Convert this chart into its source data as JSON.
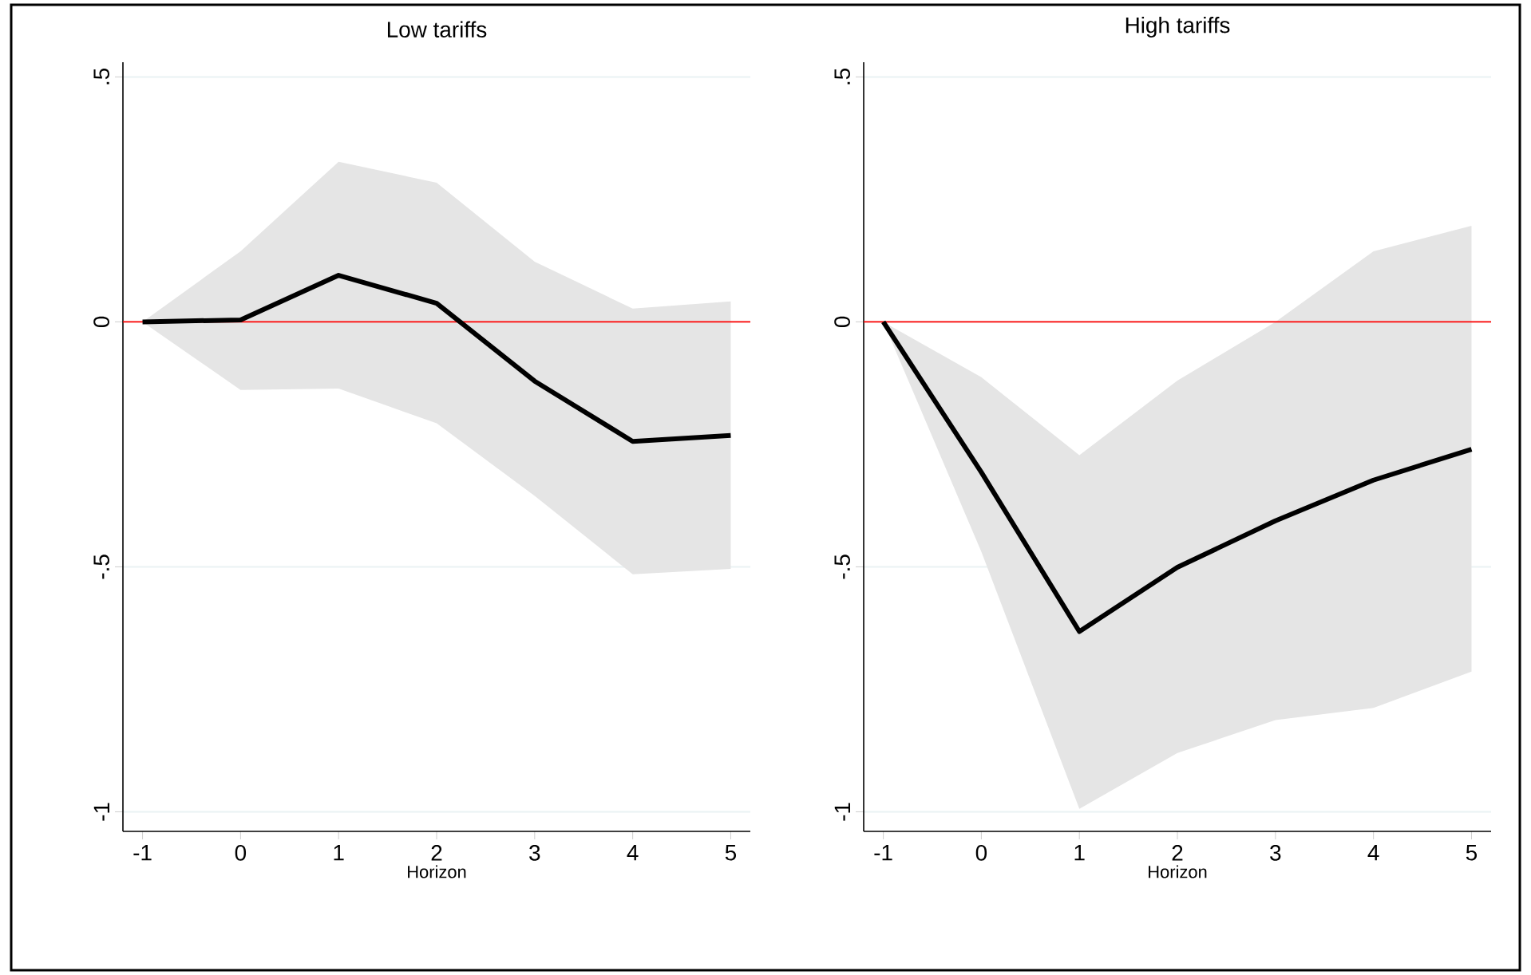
{
  "chart_data": [
    {
      "type": "line",
      "title": "Low tariffs",
      "xlabel": "Horizon",
      "x": [
        -1,
        0,
        1,
        2,
        3,
        4,
        5
      ],
      "series": [
        {
          "color": "#000000",
          "values": [
            0,
            0.004,
            0.095,
            0.038,
            -0.121,
            -0.244,
            -0.232
          ],
          "lower": [
            0,
            -0.139,
            -0.136,
            -0.207,
            -0.355,
            -0.515,
            -0.504
          ],
          "upper": [
            0,
            0.144,
            0.327,
            0.284,
            0.123,
            0.027,
            0.042
          ]
        }
      ],
      "xlim": [
        -1.2,
        5.2
      ],
      "ylim": [
        -1.04,
        0.53
      ],
      "xticks": [
        -1,
        0,
        1,
        2,
        3,
        4,
        5
      ],
      "yticks": [
        {
          "value": -1,
          "label": "-1"
        },
        {
          "value": -0.5,
          "label": "-.5"
        },
        0,
        {
          "value": 0.5,
          "label": ".5"
        }
      ],
      "grid": "y",
      "ref_lines": [
        {
          "axis": "y",
          "value": 0,
          "color": "#ff0000"
        }
      ]
    },
    {
      "type": "line",
      "title": "High tariffs",
      "xlabel": "Horizon",
      "x": [
        -1,
        0,
        1,
        2,
        3,
        4,
        5
      ],
      "series": [
        {
          "color": "#000000",
          "values": [
            0,
            -0.307,
            -0.632,
            -0.501,
            -0.406,
            -0.323,
            -0.26
          ],
          "lower": [
            0,
            -0.469,
            -0.994,
            -0.88,
            -0.813,
            -0.788,
            -0.714
          ],
          "upper": [
            0,
            -0.113,
            -0.272,
            -0.12,
            0,
            0.144,
            0.196
          ]
        }
      ],
      "xlim": [
        -1.2,
        5.2
      ],
      "ylim": [
        -1.04,
        0.53
      ],
      "xticks": [
        -1,
        0,
        1,
        2,
        3,
        4,
        5
      ],
      "yticks": [
        {
          "value": -1,
          "label": "-1"
        },
        {
          "value": -0.5,
          "label": "-.5"
        },
        0,
        {
          "value": 0.5,
          "label": ".5"
        }
      ],
      "grid": "y",
      "ref_lines": [
        {
          "axis": "y",
          "value": 0,
          "color": "#ff0000"
        }
      ]
    }
  ]
}
